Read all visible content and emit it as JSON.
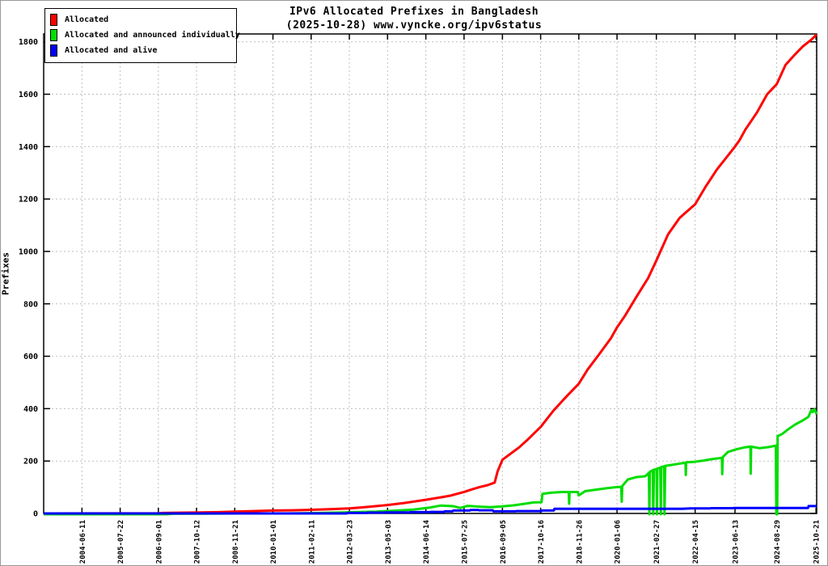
{
  "window": {
    "background": "#ffffff",
    "frame_border": "#999999"
  },
  "title": {
    "line1": "IPv6 Allocated Prefixes in Bangladesh",
    "line2": "(2025-10-28) www.vyncke.org/ipv6status"
  },
  "legend": {
    "position": "top-left",
    "items": [
      {
        "label": "Allocated",
        "color": "#ff0000"
      },
      {
        "label": "Allocated and announced individually",
        "color": "#00dd00"
      },
      {
        "label": "Allocated and alive",
        "color": "#0000ff"
      }
    ]
  },
  "y_axis_title": "Prefixes",
  "chart_data": {
    "type": "line",
    "title": "IPv6 Allocated Prefixes in Bangladesh (2025-10-28) www.vyncke.org/ipv6status",
    "xlabel": "",
    "ylabel": "Prefixes",
    "grid": true,
    "grid_color": "#bfbfbf",
    "border_color": "#000000",
    "legend_position": "top-left",
    "x_range": [
      "2003-05-01",
      "2025-10-28"
    ],
    "ylim": [
      0,
      1830
    ],
    "y_ticks": [
      0,
      200,
      400,
      600,
      800,
      1000,
      1200,
      1400,
      1600,
      1800
    ],
    "x_ticks": [
      "2004-06-11",
      "2005-07-22",
      "2006-09-01",
      "2007-10-12",
      "2008-11-21",
      "2010-01-01",
      "2011-02-11",
      "2012-03-23",
      "2013-05-03",
      "2014-06-14",
      "2015-07-25",
      "2016-09-05",
      "2017-10-16",
      "2018-11-26",
      "2020-01-06",
      "2021-02-27",
      "2022-04-15",
      "2023-06-13",
      "2024-08-29",
      "2025-10-21"
    ],
    "series": [
      {
        "name": "Allocated",
        "color": "#ff0000",
        "points": [
          [
            "2003-05-01",
            0
          ],
          [
            "2006-09-15",
            1
          ],
          [
            "2006-10-15",
            2
          ],
          [
            "2007-06-01",
            3
          ],
          [
            "2007-12-01",
            4
          ],
          [
            "2008-06-01",
            5
          ],
          [
            "2008-11-21",
            7
          ],
          [
            "2009-06-01",
            9
          ],
          [
            "2010-01-01",
            11
          ],
          [
            "2010-08-01",
            12
          ],
          [
            "2011-02-11",
            14
          ],
          [
            "2011-09-01",
            16
          ],
          [
            "2012-03-23",
            19
          ],
          [
            "2012-09-01",
            24
          ],
          [
            "2013-05-03",
            32
          ],
          [
            "2013-11-01",
            40
          ],
          [
            "2014-06-14",
            52
          ],
          [
            "2014-12-01",
            62
          ],
          [
            "2015-03-01",
            68
          ],
          [
            "2015-07-25",
            82
          ],
          [
            "2015-10-01",
            90
          ],
          [
            "2016-01-01",
            100
          ],
          [
            "2016-04-01",
            108
          ],
          [
            "2016-06-15",
            118
          ],
          [
            "2016-07-15",
            160
          ],
          [
            "2016-09-05",
            205
          ],
          [
            "2016-12-01",
            228
          ],
          [
            "2017-03-01",
            252
          ],
          [
            "2017-06-01",
            282
          ],
          [
            "2017-10-16",
            330
          ],
          [
            "2018-03-01",
            392
          ],
          [
            "2018-07-01",
            440
          ],
          [
            "2018-11-26",
            495
          ],
          [
            "2019-03-01",
            550
          ],
          [
            "2019-07-01",
            608
          ],
          [
            "2019-11-01",
            668
          ],
          [
            "2020-01-06",
            710
          ],
          [
            "2020-04-01",
            755
          ],
          [
            "2020-08-01",
            828
          ],
          [
            "2020-12-01",
            898
          ],
          [
            "2021-02-27",
            965
          ],
          [
            "2021-07-01",
            1065
          ],
          [
            "2021-11-01",
            1128
          ],
          [
            "2022-04-15",
            1180
          ],
          [
            "2022-08-01",
            1245
          ],
          [
            "2022-12-01",
            1312
          ],
          [
            "2023-06-13",
            1400
          ],
          [
            "2023-08-01",
            1425
          ],
          [
            "2023-10-01",
            1465
          ],
          [
            "2024-02-01",
            1530
          ],
          [
            "2024-05-20",
            1600
          ],
          [
            "2024-08-29",
            1638
          ],
          [
            "2024-12-01",
            1712
          ],
          [
            "2025-03-01",
            1748
          ],
          [
            "2025-06-01",
            1782
          ],
          [
            "2025-09-01",
            1808
          ],
          [
            "2025-10-28",
            1828
          ]
        ]
      },
      {
        "name": "Allocated and announced individually",
        "color": "#00dd00",
        "points": [
          [
            "2003-05-01",
            0
          ],
          [
            "2006-12-01",
            0
          ],
          [
            "2007-02-01",
            2
          ],
          [
            "2009-01-01",
            3
          ],
          [
            "2010-06-01",
            3
          ],
          [
            "2011-06-01",
            5
          ],
          [
            "2012-06-01",
            8
          ],
          [
            "2013-01-01",
            10
          ],
          [
            "2013-08-01",
            14
          ],
          [
            "2014-02-01",
            18
          ],
          [
            "2014-08-01",
            26
          ],
          [
            "2014-11-15",
            33
          ],
          [
            "2015-04-01",
            31
          ],
          [
            "2015-06-15",
            24
          ],
          [
            "2015-09-01",
            32
          ],
          [
            "2016-01-01",
            29
          ],
          [
            "2016-05-01",
            27
          ],
          [
            "2016-09-05",
            30
          ],
          [
            "2017-01-01",
            34
          ],
          [
            "2017-05-01",
            40
          ],
          [
            "2017-08-01",
            45
          ],
          [
            "2017-10-25",
            46
          ],
          [
            "2017-11-05",
            78
          ],
          [
            "2018-02-01",
            82
          ],
          [
            "2018-06-01",
            85
          ],
          [
            "2018-08-10",
            85
          ],
          [
            "2018-08-15",
            40
          ],
          [
            "2018-08-20",
            85
          ],
          [
            "2018-11-15",
            85
          ],
          [
            "2018-11-25",
            72
          ],
          [
            "2019-02-01",
            88
          ],
          [
            "2019-06-01",
            94
          ],
          [
            "2019-10-01",
            100
          ],
          [
            "2020-01-15",
            104
          ],
          [
            "2020-02-20",
            104
          ],
          [
            "2020-02-25",
            48
          ],
          [
            "2020-03-02",
            108
          ],
          [
            "2020-05-01",
            133
          ],
          [
            "2020-08-01",
            142
          ],
          [
            "2020-11-01",
            145
          ],
          [
            "2020-12-10",
            158
          ],
          [
            "2020-12-15",
            0
          ],
          [
            "2020-12-20",
            162
          ],
          [
            "2021-01-20",
            168
          ],
          [
            "2021-01-25",
            0
          ],
          [
            "2021-02-01",
            170
          ],
          [
            "2021-03-01",
            172
          ],
          [
            "2021-03-05",
            0
          ],
          [
            "2021-03-10",
            174
          ],
          [
            "2021-04-10",
            178
          ],
          [
            "2021-04-15",
            0
          ],
          [
            "2021-04-20",
            180
          ],
          [
            "2021-05-20",
            183
          ],
          [
            "2021-05-25",
            0
          ],
          [
            "2021-06-01",
            185
          ],
          [
            "2021-08-01",
            188
          ],
          [
            "2021-12-01",
            195
          ],
          [
            "2022-01-03",
            196
          ],
          [
            "2022-01-06",
            150
          ],
          [
            "2022-01-10",
            198
          ],
          [
            "2022-04-01",
            200
          ],
          [
            "2022-07-14",
            205
          ],
          [
            "2022-10-01",
            210
          ],
          [
            "2023-01-25",
            215
          ],
          [
            "2023-01-28",
            153
          ],
          [
            "2023-02-02",
            218
          ],
          [
            "2023-03-29",
            238
          ],
          [
            "2023-07-01",
            248
          ],
          [
            "2023-09-17",
            255
          ],
          [
            "2023-11-24",
            258
          ],
          [
            "2023-11-27",
            155
          ],
          [
            "2023-12-01",
            258
          ],
          [
            "2024-03-01",
            252
          ],
          [
            "2024-06-01",
            256
          ],
          [
            "2024-08-20",
            262
          ],
          [
            "2024-08-25",
            0
          ],
          [
            "2024-09-04",
            0
          ],
          [
            "2024-09-08",
            298
          ],
          [
            "2024-10-25",
            306
          ],
          [
            "2025-01-01",
            325
          ],
          [
            "2025-03-11",
            342
          ],
          [
            "2025-06-01",
            358
          ],
          [
            "2025-08-01",
            372
          ],
          [
            "2025-08-30",
            396
          ],
          [
            "2025-09-15",
            390
          ],
          [
            "2025-10-05",
            400
          ],
          [
            "2025-10-28",
            382
          ]
        ]
      },
      {
        "name": "Allocated and alive",
        "color": "#0000ff",
        "points": [
          [
            "2003-05-01",
            0
          ],
          [
            "2012-02-25",
            0
          ],
          [
            "2012-03-01",
            2
          ],
          [
            "2012-09-25",
            2
          ],
          [
            "2012-10-01",
            3
          ],
          [
            "2013-03-25",
            3
          ],
          [
            "2013-04-01",
            4
          ],
          [
            "2013-12-25",
            4
          ],
          [
            "2014-01-01",
            5
          ],
          [
            "2014-07-25",
            5
          ],
          [
            "2014-08-01",
            6
          ],
          [
            "2014-12-25",
            6
          ],
          [
            "2015-01-01",
            8
          ],
          [
            "2015-03-25",
            8
          ],
          [
            "2015-04-01",
            11
          ],
          [
            "2015-09-25",
            11
          ],
          [
            "2015-10-01",
            13
          ],
          [
            "2015-12-25",
            13
          ],
          [
            "2016-01-01",
            12
          ],
          [
            "2016-05-25",
            12
          ],
          [
            "2016-06-01",
            8
          ],
          [
            "2017-01-25",
            8
          ],
          [
            "2017-02-01",
            9
          ],
          [
            "2017-10-25",
            9
          ],
          [
            "2017-11-01",
            11
          ],
          [
            "2018-03-05",
            11
          ],
          [
            "2018-03-12",
            18
          ],
          [
            "2021-11-25",
            18
          ],
          [
            "2022-03-01",
            19
          ],
          [
            "2022-09-25",
            19
          ],
          [
            "2022-10-01",
            20
          ],
          [
            "2023-05-25",
            20
          ],
          [
            "2023-06-01",
            21
          ],
          [
            "2025-07-28",
            21
          ],
          [
            "2025-08-03",
            28
          ],
          [
            "2025-10-20",
            28
          ],
          [
            "2025-10-28",
            29
          ]
        ]
      }
    ]
  }
}
